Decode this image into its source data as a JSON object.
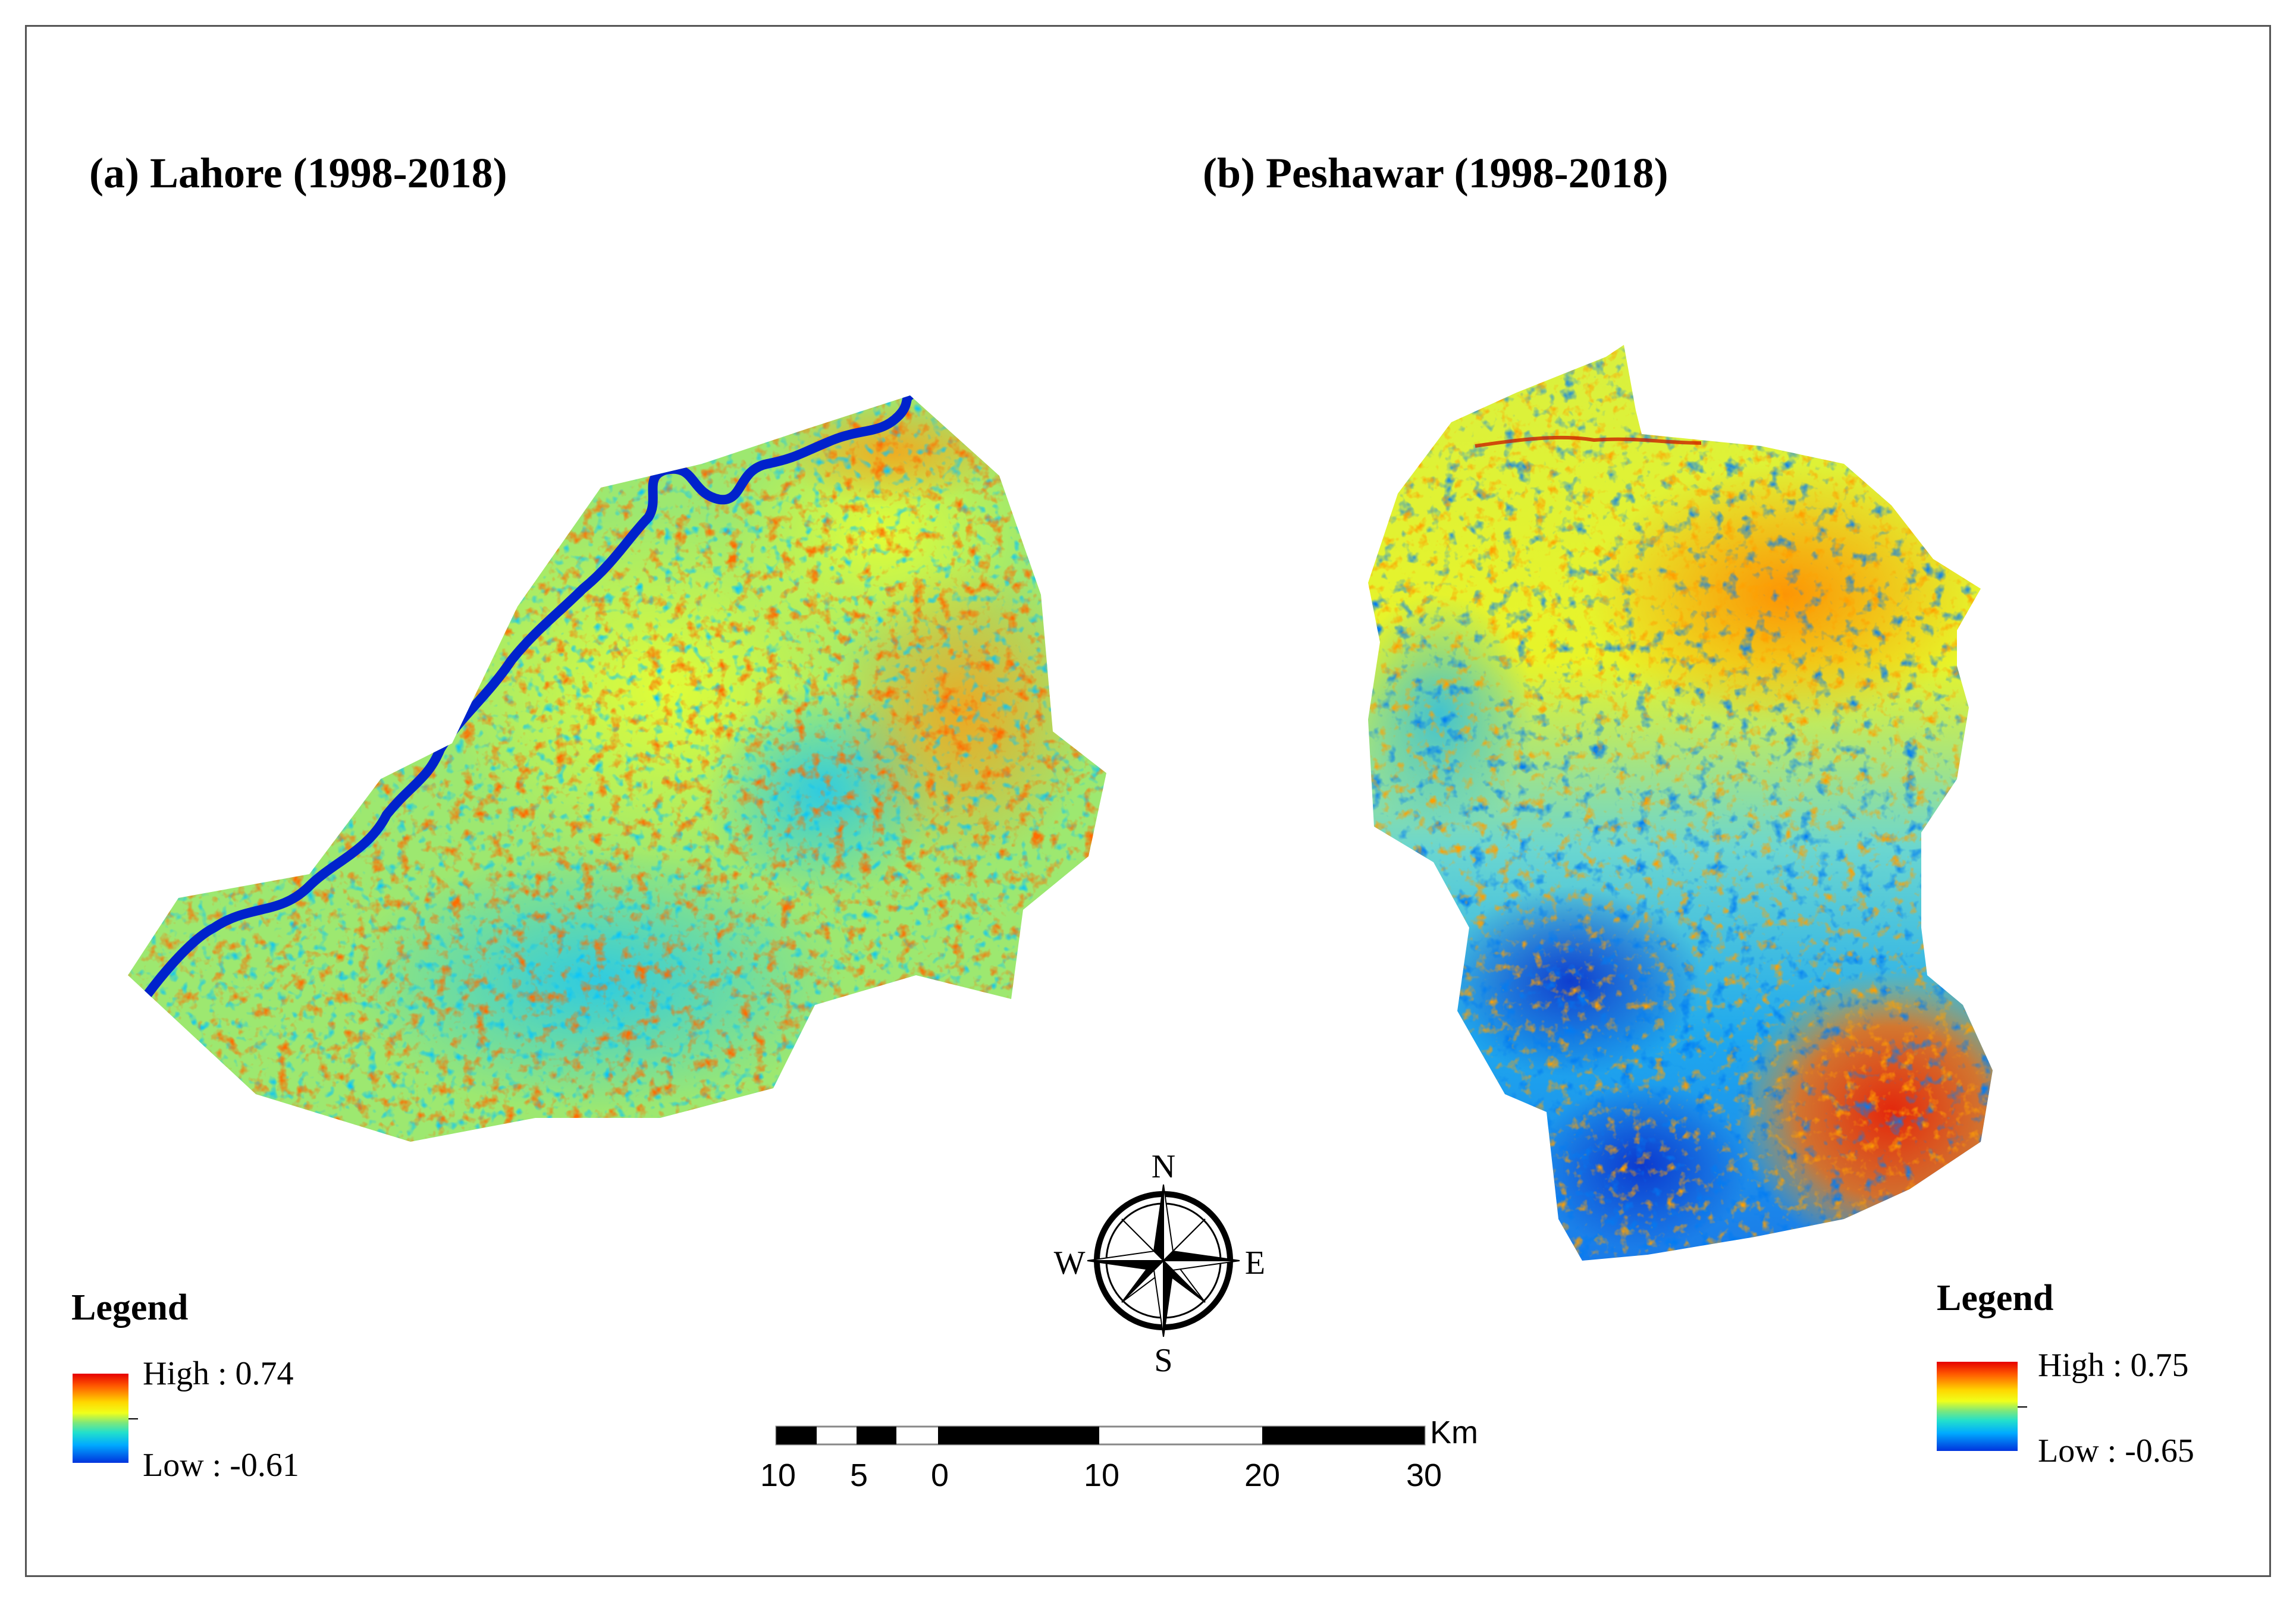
{
  "panels": [
    {
      "title": "(a) Lahore (1998-2018)",
      "legend": {
        "title": "Legend",
        "high": "High : 0.74",
        "low": "Low : -0.61"
      }
    },
    {
      "title": "(b) Peshawar (1998-2018)",
      "legend": {
        "title": "Legend",
        "high": "High : 0.75",
        "low": "Low : -0.65"
      }
    }
  ],
  "compass": {
    "n": "N",
    "s": "S",
    "e": "E",
    "w": "W"
  },
  "scale_bar": {
    "labels": [
      "10",
      "5",
      "0",
      "10",
      "20",
      "30"
    ],
    "unit": "Km"
  },
  "colors": {
    "high": "#e60000",
    "mid": "#f0ff1a",
    "low": "#0033dd",
    "river": "#0022cc"
  }
}
